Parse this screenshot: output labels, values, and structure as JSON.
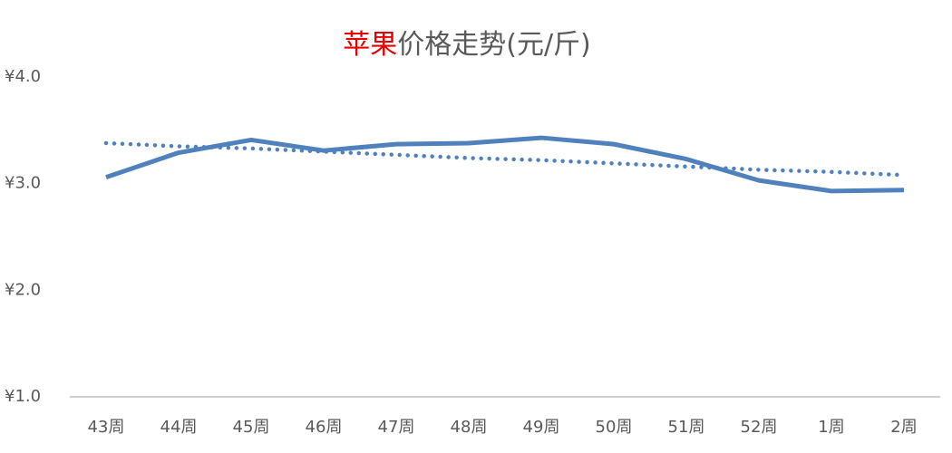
{
  "chart_data": {
    "type": "line",
    "title": [
      "苹果",
      "价格走势(元/斤)"
    ],
    "title_colors": [
      "#e60000",
      "#595959"
    ],
    "categories": [
      "43周",
      "44周",
      "45周",
      "46周",
      "47周",
      "48周",
      "49周",
      "50周",
      "51周",
      "52周",
      "1周",
      "2周"
    ],
    "series": [
      {
        "color": "#4f81bd",
        "dash": "solid",
        "values": [
          3.06,
          3.29,
          3.41,
          3.31,
          3.37,
          3.38,
          3.43,
          3.37,
          3.23,
          3.03,
          2.93,
          2.94
        ]
      },
      {
        "color": "#4f81bd",
        "dash": "dotted",
        "values": [
          3.38,
          3.35,
          3.33,
          3.3,
          3.27,
          3.24,
          3.22,
          3.19,
          3.16,
          3.13,
          3.11,
          3.08
        ]
      }
    ],
    "ylim": [
      1,
      4
    ],
    "yticks": [
      {
        "value": 1,
        "label": "¥1.0"
      },
      {
        "value": 2,
        "label": "¥2.0"
      },
      {
        "value": 3,
        "label": "¥3.0"
      },
      {
        "value": 4,
        "label": "¥4.0"
      }
    ],
    "grid": false
  }
}
